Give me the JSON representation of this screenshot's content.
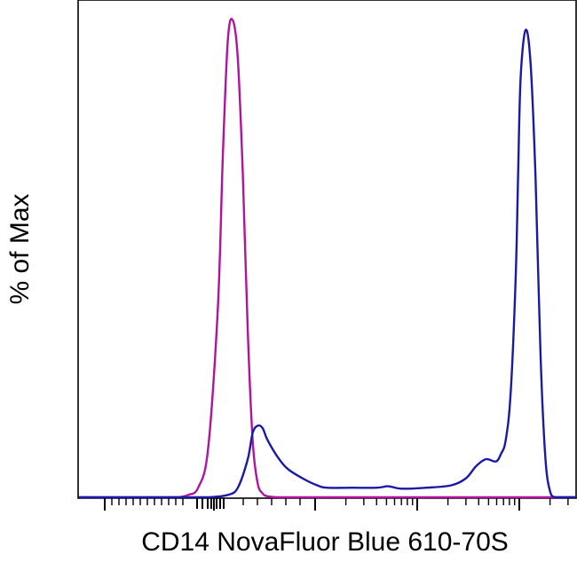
{
  "chart_data": {
    "type": "line",
    "title": "",
    "xlabel": "CD14 NovaFluor Blue 610-70S",
    "ylabel": "% of Max",
    "xscale": "log (biexponential), unlabeled ticks",
    "x_tick_labels": [],
    "ylim": [
      0,
      100
    ],
    "grid": false,
    "legend": "none",
    "series": [
      {
        "color": "#B0149E",
        "x": [
          0.0,
          0.05,
          0.1,
          0.15,
          0.18,
          0.2,
          0.22,
          0.24,
          0.26,
          0.28,
          0.29,
          0.3,
          0.31,
          0.32,
          0.33,
          0.34,
          0.35,
          0.36,
          0.37,
          0.38,
          0.4,
          0.42,
          0.5,
          0.7,
          1.0
        ],
        "values": [
          0,
          0,
          0,
          0,
          0,
          0,
          0.5,
          2,
          10,
          40,
          72,
          96,
          100,
          92,
          68,
          35,
          12,
          3,
          0.8,
          0.2,
          0,
          0,
          0,
          0,
          0
        ]
      },
      {
        "color": "#1A1AA6",
        "x": [
          0.0,
          0.1,
          0.2,
          0.26,
          0.3,
          0.32,
          0.34,
          0.35,
          0.36,
          0.37,
          0.38,
          0.4,
          0.42,
          0.45,
          0.48,
          0.5,
          0.55,
          0.6,
          0.62,
          0.63,
          0.65,
          0.7,
          0.75,
          0.78,
          0.8,
          0.82,
          0.84,
          0.85,
          0.86,
          0.87,
          0.88,
          0.885,
          0.89,
          0.9,
          0.91,
          0.92,
          0.93,
          0.94,
          0.95,
          0.96,
          0.98,
          1.0
        ],
        "values": [
          0,
          0,
          0,
          0,
          0.5,
          2,
          8,
          13.5,
          15,
          14.5,
          12,
          8.5,
          6,
          4,
          2.5,
          2,
          2,
          2,
          2.3,
          2.2,
          1.8,
          2,
          2.5,
          4,
          6.5,
          8,
          7.5,
          9,
          12,
          22,
          46,
          68,
          88,
          98,
          91,
          67,
          30,
          8,
          1,
          0,
          0,
          0
        ]
      }
    ]
  }
}
